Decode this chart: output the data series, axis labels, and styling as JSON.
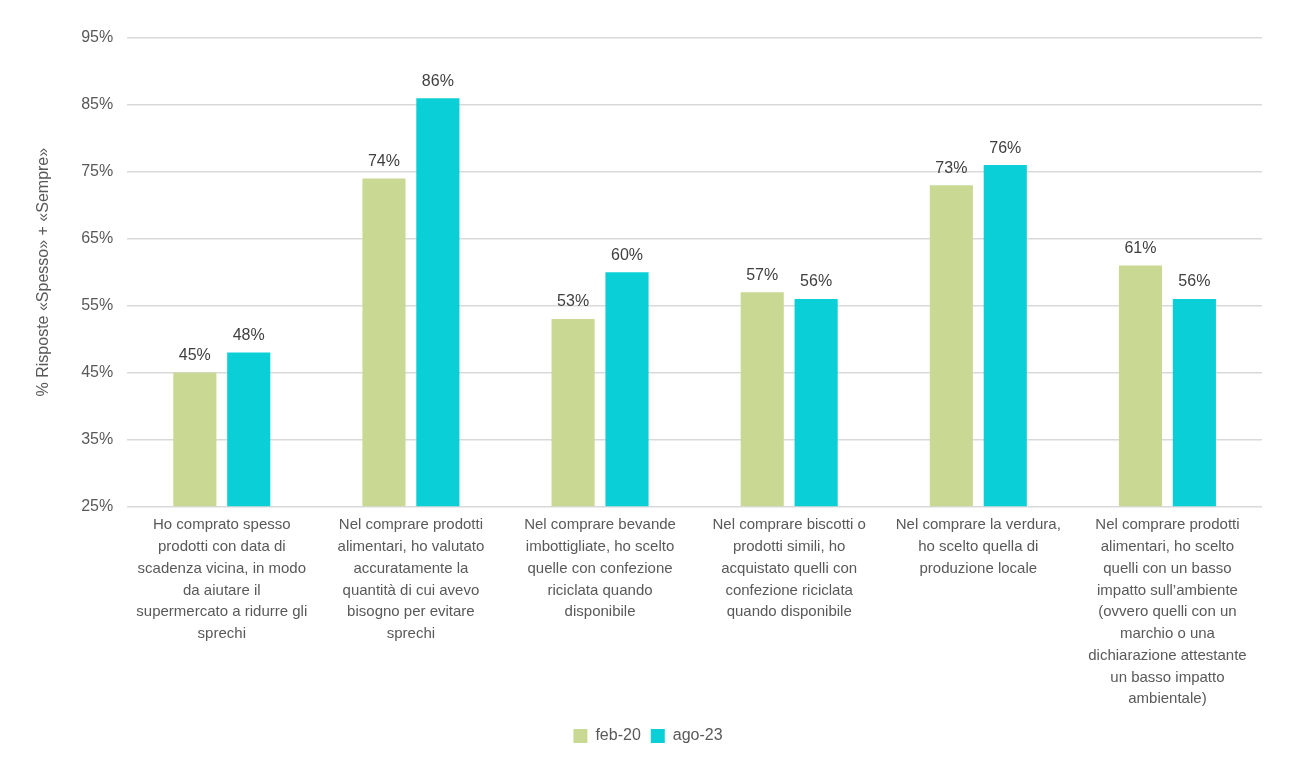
{
  "chart_data": {
    "type": "bar",
    "ylabel": "% Risposte «Spesso» + «Sempre»",
    "categories": [
      "Ho comprato spesso prodotti con data di scadenza vicina, in modo da aiutare il supermercato a ridurre gli sprechi",
      "Nel comprare prodotti alimentari, ho valutato accuratamente la quantità di cui avevo bisogno per evitare sprechi",
      "Nel comprare bevande imbottigliate, ho scelto quelle con confezione riciclata quando disponibile",
      "Nel comprare biscotti o prodotti simili, ho acquistato quelli con confezione riciclata quando disponibile",
      "Nel comprare la verdura, ho scelto quella di produzione locale",
      "Nel comprare prodotti alimentari, ho scelto quelli con un basso impatto sull’ambiente (ovvero quelli con un marchio o una dichiarazione attestante un basso impatto ambientale)"
    ],
    "series": [
      {
        "name": "feb-20",
        "color": "#c9d993",
        "values": [
          45,
          74,
          53,
          57,
          73,
          61
        ],
        "value_labels": [
          "45%",
          "74%",
          "53%",
          "57%",
          "73%",
          "61%"
        ]
      },
      {
        "name": "ago-23",
        "color": "#0bcfd7",
        "values": [
          48,
          86,
          60,
          56,
          76,
          56
        ],
        "value_labels": [
          "48%",
          "86%",
          "60%",
          "56%",
          "76%",
          "56%"
        ]
      }
    ],
    "ylim": [
      25,
      95
    ],
    "yticks": [
      {
        "value": 25,
        "label": "25%"
      },
      {
        "value": 35,
        "label": "35%"
      },
      {
        "value": 45,
        "label": "45%"
      },
      {
        "value": 55,
        "label": "55%"
      },
      {
        "value": 65,
        "label": "65%"
      },
      {
        "value": 75,
        "label": "75%"
      },
      {
        "value": 85,
        "label": "85%"
      },
      {
        "value": 95,
        "label": "95%"
      }
    ],
    "grid": "y",
    "legend": "bottom"
  }
}
